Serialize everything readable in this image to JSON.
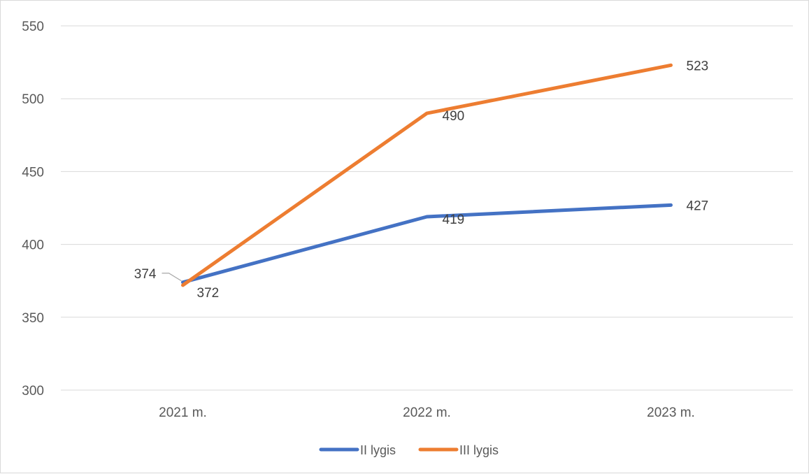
{
  "chart_data": {
    "type": "line",
    "title": "",
    "xlabel": "",
    "ylabel": "",
    "categories": [
      "2021 m.",
      "2022 m.",
      "2023 m."
    ],
    "ylim": [
      300,
      550
    ],
    "yticks": [
      300,
      350,
      400,
      450,
      500,
      550
    ],
    "grid": "horizontal",
    "legend_position": "bottom",
    "series": [
      {
        "name": "II lygis",
        "values": [
          374,
          419,
          427
        ],
        "color": "#4472C4"
      },
      {
        "name": "III lygis",
        "values": [
          372,
          490,
          523
        ],
        "color": "#ED7D31"
      }
    ]
  }
}
